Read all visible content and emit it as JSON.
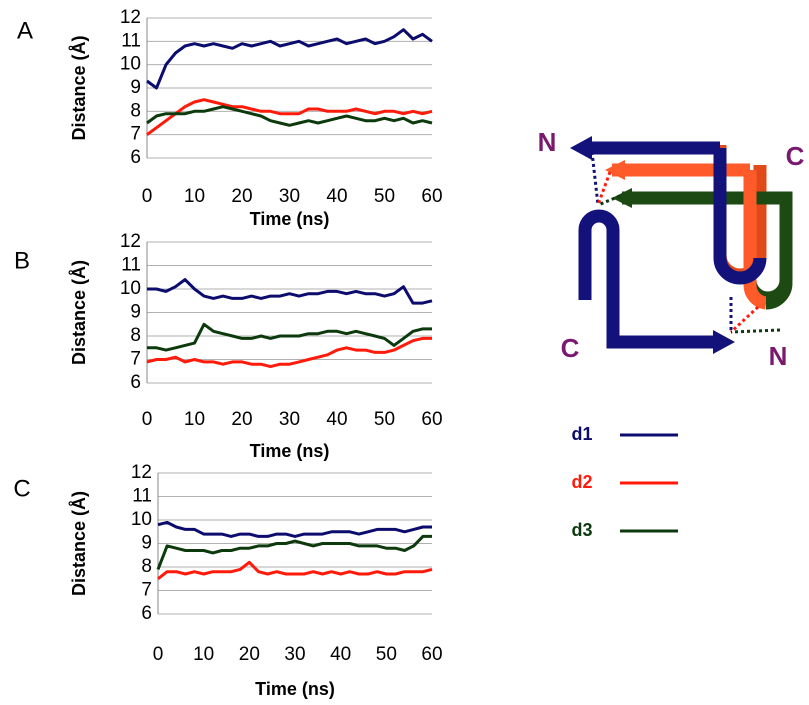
{
  "chart_data": [
    {
      "type": "line",
      "label": "A",
      "xlabel": "Time (ns)",
      "ylabel": "Distance (Å)",
      "xlim": [
        0,
        60
      ],
      "xticks": [
        0,
        10,
        20,
        30,
        40,
        50,
        60
      ],
      "ylim": [
        6,
        12
      ],
      "yticks": [
        6,
        7,
        8,
        9,
        10,
        11,
        12
      ],
      "grid": true,
      "x": [
        0,
        2,
        4,
        6,
        8,
        10,
        12,
        14,
        16,
        18,
        20,
        22,
        24,
        26,
        28,
        30,
        32,
        34,
        36,
        38,
        40,
        42,
        44,
        46,
        48,
        50,
        52,
        54,
        56,
        58,
        60
      ],
      "series": [
        {
          "name": "d1",
          "color": "#0c0c6e",
          "values": [
            9.3,
            9.0,
            10.0,
            10.5,
            10.8,
            10.9,
            10.8,
            10.9,
            10.8,
            10.7,
            10.9,
            10.8,
            10.9,
            11.0,
            10.8,
            10.9,
            11.0,
            10.8,
            10.9,
            11.0,
            11.1,
            10.9,
            11.0,
            11.1,
            10.9,
            11.0,
            11.2,
            11.5,
            11.1,
            11.3,
            11.0
          ]
        },
        {
          "name": "d2",
          "color": "#ff1a0a",
          "values": [
            7.0,
            7.3,
            7.6,
            7.9,
            8.2,
            8.4,
            8.5,
            8.4,
            8.3,
            8.2,
            8.2,
            8.1,
            8.0,
            8.0,
            7.9,
            7.9,
            7.9,
            8.1,
            8.1,
            8.0,
            8.0,
            8.0,
            8.1,
            8.0,
            7.9,
            8.0,
            8.0,
            7.9,
            8.0,
            7.9,
            8.0
          ]
        },
        {
          "name": "d3",
          "color": "#0d3a0d",
          "values": [
            7.5,
            7.8,
            7.9,
            7.9,
            7.9,
            8.0,
            8.0,
            8.1,
            8.2,
            8.1,
            8.0,
            7.9,
            7.8,
            7.6,
            7.5,
            7.4,
            7.5,
            7.6,
            7.5,
            7.6,
            7.7,
            7.8,
            7.7,
            7.6,
            7.6,
            7.7,
            7.6,
            7.7,
            7.5,
            7.6,
            7.5
          ]
        }
      ]
    },
    {
      "type": "line",
      "label": "B",
      "xlabel": "Time (ns)",
      "ylabel": "Distance (Å)",
      "xlim": [
        0,
        60
      ],
      "xticks": [
        0,
        10,
        20,
        30,
        40,
        50,
        60
      ],
      "ylim": [
        6,
        12
      ],
      "yticks": [
        6,
        7,
        8,
        9,
        10,
        11,
        12
      ],
      "grid": true,
      "x": [
        0,
        2,
        4,
        6,
        8,
        10,
        12,
        14,
        16,
        18,
        20,
        22,
        24,
        26,
        28,
        30,
        32,
        34,
        36,
        38,
        40,
        42,
        44,
        46,
        48,
        50,
        52,
        54,
        56,
        58,
        60
      ],
      "series": [
        {
          "name": "d1",
          "color": "#0c0c6e",
          "values": [
            10.0,
            10.0,
            9.9,
            10.1,
            10.4,
            10.0,
            9.7,
            9.6,
            9.7,
            9.6,
            9.6,
            9.7,
            9.6,
            9.7,
            9.7,
            9.8,
            9.7,
            9.8,
            9.8,
            9.9,
            9.9,
            9.8,
            9.9,
            9.8,
            9.8,
            9.7,
            9.8,
            10.1,
            9.4,
            9.4,
            9.5
          ]
        },
        {
          "name": "d2",
          "color": "#ff1a0a",
          "values": [
            6.9,
            7.0,
            7.0,
            7.1,
            6.9,
            7.0,
            6.9,
            6.9,
            6.8,
            6.9,
            6.9,
            6.8,
            6.8,
            6.7,
            6.8,
            6.8,
            6.9,
            7.0,
            7.1,
            7.2,
            7.4,
            7.5,
            7.4,
            7.4,
            7.3,
            7.3,
            7.4,
            7.6,
            7.8,
            7.9,
            7.9
          ]
        },
        {
          "name": "d3",
          "color": "#0d3a0d",
          "values": [
            7.5,
            7.5,
            7.4,
            7.5,
            7.6,
            7.7,
            8.5,
            8.2,
            8.1,
            8.0,
            7.9,
            7.9,
            8.0,
            7.9,
            8.0,
            8.0,
            8.0,
            8.1,
            8.1,
            8.2,
            8.2,
            8.1,
            8.2,
            8.1,
            8.0,
            7.9,
            7.6,
            7.9,
            8.2,
            8.3,
            8.3
          ]
        }
      ]
    },
    {
      "type": "line",
      "label": "C",
      "xlabel": "Time (ns)",
      "ylabel": "Distance (Å)",
      "xlim": [
        0,
        60
      ],
      "xticks": [
        0,
        10,
        20,
        30,
        40,
        50,
        60
      ],
      "ylim": [
        6,
        12
      ],
      "yticks": [
        6,
        7,
        8,
        9,
        10,
        11,
        12
      ],
      "grid": true,
      "x": [
        0,
        2,
        4,
        6,
        8,
        10,
        12,
        14,
        16,
        18,
        20,
        22,
        24,
        26,
        28,
        30,
        32,
        34,
        36,
        38,
        40,
        42,
        44,
        46,
        48,
        50,
        52,
        54,
        56,
        58,
        60
      ],
      "series": [
        {
          "name": "d1",
          "color": "#0c0c6e",
          "values": [
            9.8,
            9.9,
            9.7,
            9.6,
            9.6,
            9.4,
            9.4,
            9.4,
            9.3,
            9.4,
            9.4,
            9.3,
            9.3,
            9.4,
            9.4,
            9.3,
            9.4,
            9.4,
            9.4,
            9.5,
            9.5,
            9.5,
            9.4,
            9.5,
            9.6,
            9.6,
            9.6,
            9.5,
            9.6,
            9.7,
            9.7
          ]
        },
        {
          "name": "d2",
          "color": "#ff1a0a",
          "values": [
            7.5,
            7.8,
            7.8,
            7.7,
            7.8,
            7.7,
            7.8,
            7.8,
            7.8,
            7.9,
            8.2,
            7.8,
            7.7,
            7.8,
            7.7,
            7.7,
            7.7,
            7.8,
            7.7,
            7.8,
            7.7,
            7.8,
            7.7,
            7.7,
            7.8,
            7.7,
            7.7,
            7.8,
            7.8,
            7.8,
            7.9
          ]
        },
        {
          "name": "d3",
          "color": "#0d3a0d",
          "values": [
            7.9,
            8.9,
            8.8,
            8.7,
            8.7,
            8.7,
            8.6,
            8.7,
            8.7,
            8.8,
            8.8,
            8.9,
            8.9,
            9.0,
            9.0,
            9.1,
            9.0,
            8.9,
            9.0,
            9.0,
            9.0,
            9.0,
            8.9,
            8.9,
            8.9,
            8.8,
            8.8,
            8.7,
            8.9,
            9.3,
            9.3
          ]
        }
      ]
    }
  ],
  "diagram": {
    "labels": [
      "N",
      "C",
      "C",
      "N"
    ]
  }
}
